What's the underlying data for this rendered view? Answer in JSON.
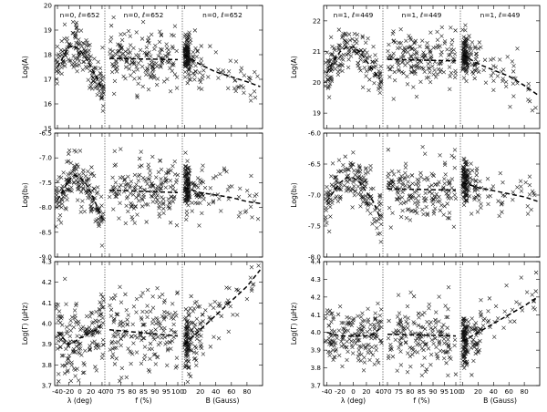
{
  "chart_data": {
    "type": "scatter",
    "groups": [
      {
        "panel_title": "n=0, ℓ=652",
        "x_axes": [
          {
            "label": "λ (deg)",
            "lim": [
              -45,
              45
            ],
            "ticks": [
              -40,
              -20,
              0,
              20,
              40
            ]
          },
          {
            "label": "f (%)",
            "lim": [
              68,
              102
            ],
            "ticks": [
              70,
              75,
              80,
              85,
              90,
              95,
              100
            ]
          },
          {
            "label": "B (Gauss)",
            "lim": [
              -3,
              100
            ],
            "ticks": [
              0,
              20,
              40,
              60,
              80
            ]
          }
        ],
        "rows": [
          {
            "ylabel": "Log(A)",
            "ylim": [
              15,
              20
            ],
            "yticks": [
              "15",
              "16",
              "17",
              "18",
              "19",
              "20"
            ],
            "fit": [
              [
                [
                  -40,
                  17.5
                ],
                [
                  -30,
                  17.9
                ],
                [
                  -20,
                  18.3
                ],
                [
                  -10,
                  18.35
                ],
                [
                  0,
                  18.2
                ],
                [
                  10,
                  17.9
                ],
                [
                  20,
                  17.5
                ],
                [
                  30,
                  17.1
                ],
                [
                  40,
                  16.6
                ]
              ],
              [
                [
                  70,
                  17.85
                ],
                [
                  100,
                  17.8
                ]
              ],
              [
                [
                  0,
                  18.0
                ],
                [
                  20,
                  17.6
                ],
                [
                  40,
                  17.3
                ],
                [
                  60,
                  17.1
                ],
                [
                  80,
                  16.9
                ],
                [
                  97,
                  16.7
                ]
              ]
            ],
            "spread": 0.45
          },
          {
            "ylabel": "Log(b₀)",
            "ylim": [
              -9.0,
              -6.5
            ],
            "yticks": [
              "-9.0",
              "-8.5",
              "-8.0",
              "-7.5",
              "-7.0",
              "-6.5"
            ],
            "fit": [
              [
                [
                  -40,
                  -7.85
                ],
                [
                  -30,
                  -7.65
                ],
                [
                  -20,
                  -7.45
                ],
                [
                  -10,
                  -7.35
                ],
                [
                  0,
                  -7.4
                ],
                [
                  10,
                  -7.5
                ],
                [
                  20,
                  -7.7
                ],
                [
                  30,
                  -7.95
                ],
                [
                  40,
                  -8.2
                ]
              ],
              [
                [
                  70,
                  -7.65
                ],
                [
                  100,
                  -7.7
                ]
              ],
              [
                [
                  0,
                  -7.6
                ],
                [
                  20,
                  -7.7
                ],
                [
                  40,
                  -7.75
                ],
                [
                  60,
                  -7.8
                ],
                [
                  80,
                  -7.88
                ],
                [
                  97,
                  -7.92
                ]
              ]
            ],
            "spread": 0.25
          },
          {
            "ylabel": "Log(Γ) (μHz)",
            "ylim": [
              3.7,
              4.3
            ],
            "yticks": [
              "3.7",
              "3.8",
              "3.9",
              "4.0",
              "4.1",
              "4.2",
              "4.3"
            ],
            "fit": [
              [
                [
                  -40,
                  3.96
                ],
                [
                  -30,
                  3.93
                ],
                [
                  -20,
                  3.9
                ],
                [
                  -10,
                  3.91
                ],
                [
                  0,
                  3.93
                ],
                [
                  10,
                  3.94
                ],
                [
                  20,
                  3.96
                ],
                [
                  30,
                  3.97
                ],
                [
                  40,
                  4.0
                ]
              ],
              [
                [
                  70,
                  3.97
                ],
                [
                  100,
                  3.94
                ]
              ],
              [
                [
                  0,
                  3.9
                ],
                [
                  20,
                  3.97
                ],
                [
                  40,
                  4.04
                ],
                [
                  60,
                  4.11
                ],
                [
                  80,
                  4.18
                ],
                [
                  97,
                  4.26
                ]
              ]
            ],
            "spread": 0.08
          }
        ]
      },
      {
        "panel_title": "n=1, ℓ=449",
        "x_axes": [
          {
            "label": "λ (deg)",
            "lim": [
              -45,
              45
            ],
            "ticks": [
              -40,
              -20,
              0,
              20,
              40
            ]
          },
          {
            "label": "f (%)",
            "lim": [
              68,
              102
            ],
            "ticks": [
              70,
              75,
              80,
              85,
              90,
              95,
              100
            ]
          },
          {
            "label": "B (Gauss)",
            "lim": [
              -3,
              100
            ],
            "ticks": [
              0,
              20,
              40,
              60,
              80
            ]
          }
        ],
        "rows": [
          {
            "ylabel": "Log(A)",
            "ylim": [
              18.5,
              22.5
            ],
            "yticks": [
              "19",
              "20",
              "21",
              "22"
            ],
            "fit": [
              [
                [
                  -40,
                  20.3
                ],
                [
                  -30,
                  20.7
                ],
                [
                  -20,
                  21.0
                ],
                [
                  -10,
                  21.15
                ],
                [
                  0,
                  21.15
                ],
                [
                  10,
                  21.0
                ],
                [
                  20,
                  20.7
                ],
                [
                  30,
                  20.4
                ],
                [
                  40,
                  20.1
                ]
              ],
              [
                [
                  70,
                  20.75
                ],
                [
                  100,
                  20.7
                ]
              ],
              [
                [
                  0,
                  20.9
                ],
                [
                  20,
                  20.6
                ],
                [
                  40,
                  20.4
                ],
                [
                  60,
                  20.2
                ],
                [
                  80,
                  19.9
                ],
                [
                  97,
                  19.6
                ]
              ]
            ],
            "spread": 0.35
          },
          {
            "ylabel": "Log(b₀)",
            "ylim": [
              -8.0,
              -6.0
            ],
            "yticks": [
              "-8.0",
              "-7.5",
              "-7.0",
              "-6.5",
              "-6.0"
            ],
            "fit": [
              [
                [
                  -40,
                  -7.1
                ],
                [
                  -30,
                  -6.95
                ],
                [
                  -20,
                  -6.8
                ],
                [
                  -10,
                  -6.72
                ],
                [
                  0,
                  -6.72
                ],
                [
                  10,
                  -6.8
                ],
                [
                  20,
                  -6.95
                ],
                [
                  30,
                  -7.1
                ],
                [
                  40,
                  -7.35
                ]
              ],
              [
                [
                  70,
                  -6.9
                ],
                [
                  100,
                  -6.92
                ]
              ],
              [
                [
                  0,
                  -6.8
                ],
                [
                  20,
                  -6.88
                ],
                [
                  40,
                  -6.93
                ],
                [
                  60,
                  -6.98
                ],
                [
                  80,
                  -7.03
                ],
                [
                  97,
                  -7.1
                ]
              ]
            ],
            "spread": 0.2
          },
          {
            "ylabel": "Log(Γ) (μHz)",
            "ylim": [
              3.7,
              4.4
            ],
            "yticks": [
              "3.7",
              "3.8",
              "3.9",
              "4.0",
              "4.1",
              "4.2",
              "4.3",
              "4.4"
            ],
            "fit": [
              [
                [
                  -40,
                  4.0
                ],
                [
                  -30,
                  3.99
                ],
                [
                  -20,
                  3.98
                ],
                [
                  -10,
                  3.98
                ],
                [
                  0,
                  3.98
                ],
                [
                  10,
                  3.98
                ],
                [
                  20,
                  3.98
                ],
                [
                  30,
                  3.99
                ],
                [
                  40,
                  4.02
                ]
              ],
              [
                [
                  70,
                  3.99
                ],
                [
                  100,
                  3.98
                ]
              ],
              [
                [
                  0,
                  3.95
                ],
                [
                  20,
                  4.0
                ],
                [
                  40,
                  4.05
                ],
                [
                  60,
                  4.1
                ],
                [
                  80,
                  4.15
                ],
                [
                  97,
                  4.2
                ]
              ]
            ],
            "spread": 0.08
          }
        ]
      }
    ],
    "marker": "x",
    "points_per_panel": 170,
    "grid": false,
    "legend": "none"
  }
}
